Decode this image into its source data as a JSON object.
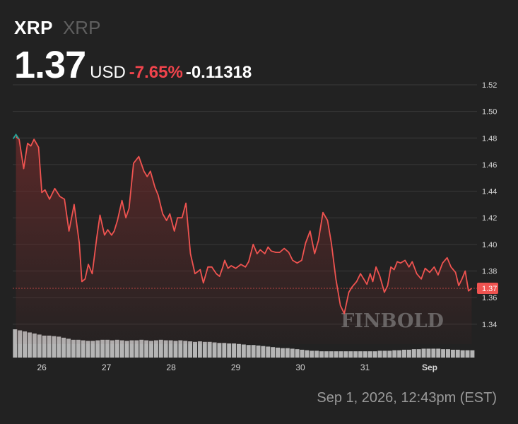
{
  "header": {
    "symbol": "XRP",
    "name": "XRP",
    "price": "1.37",
    "currency": "USD",
    "change_pct": "-7.65%",
    "change_abs": "-0.11318"
  },
  "timestamp": "Sep 1, 2026, 12:43pm (EST)",
  "watermark": "FINBOLD",
  "colors": {
    "background": "#222222",
    "line": "#ef5350",
    "area_top": "#6b2a2a",
    "start_marker": "#26a69a",
    "price_tag_bg": "#ef5350",
    "volume": "#b5b5b5",
    "grid": "#3a3a3a"
  },
  "chart_data": {
    "type": "line",
    "title": "",
    "xlabel": "",
    "ylabel": "",
    "ylim": [
      1.325,
      1.52
    ],
    "xlim": [
      25.55,
      32.7
    ],
    "y_ticks": [
      "1.52",
      "1.50",
      "1.48",
      "1.46",
      "1.44",
      "1.42",
      "1.40",
      "1.38",
      "1.36",
      "1.34"
    ],
    "x_ticks": [
      {
        "x": 26,
        "label": "26"
      },
      {
        "x": 27,
        "label": "27"
      },
      {
        "x": 28,
        "label": "28"
      },
      {
        "x": 29,
        "label": "29"
      },
      {
        "x": 30,
        "label": "30"
      },
      {
        "x": 31,
        "label": "31"
      },
      {
        "x": 32,
        "label": "Sep"
      }
    ],
    "current_price_label": "1.37",
    "current_price": 1.367,
    "series": [
      {
        "x": [
          25.6,
          25.65,
          25.72,
          25.78,
          25.83,
          25.88,
          25.95,
          26.0,
          26.05,
          26.12,
          26.2,
          26.28,
          26.35,
          26.42,
          26.5,
          26.58,
          26.62,
          26.67,
          26.72,
          26.78,
          26.85,
          26.9,
          26.97,
          27.02,
          27.08,
          27.12,
          27.17,
          27.24,
          27.3,
          27.35,
          27.42,
          27.5,
          27.58,
          27.63,
          27.68,
          27.75,
          27.8,
          27.87,
          27.93,
          27.98,
          28.05,
          28.1,
          28.17,
          28.23,
          28.3,
          28.37,
          28.45,
          28.5,
          28.57,
          28.63,
          28.7,
          28.75,
          28.8,
          28.83,
          28.88,
          28.93,
          29.0,
          29.08,
          29.15,
          29.2,
          29.27,
          29.33,
          29.38,
          29.45,
          29.5,
          29.55,
          29.62,
          29.68,
          29.75,
          29.82,
          29.88,
          29.95,
          30.02,
          30.08,
          30.15,
          30.22,
          30.28,
          30.35,
          30.42,
          30.48,
          30.55,
          30.62,
          30.68,
          30.75,
          30.8,
          30.87,
          30.93,
          30.98,
          31.03,
          31.08,
          31.12,
          31.17,
          31.23,
          31.3,
          31.35,
          31.4,
          31.45,
          31.5,
          31.55,
          31.62,
          31.68,
          31.73,
          31.8,
          31.87,
          31.93,
          32.0,
          32.07,
          32.13,
          32.2,
          32.27,
          32.33,
          32.4,
          32.45,
          32.5,
          32.55,
          32.6,
          32.65
        ],
        "y": [
          1.481,
          1.479,
          1.457,
          1.476,
          1.474,
          1.479,
          1.473,
          1.439,
          1.441,
          1.434,
          1.442,
          1.436,
          1.434,
          1.41,
          1.43,
          1.401,
          1.372,
          1.374,
          1.385,
          1.378,
          1.405,
          1.422,
          1.407,
          1.411,
          1.407,
          1.41,
          1.418,
          1.433,
          1.42,
          1.427,
          1.461,
          1.466,
          1.455,
          1.451,
          1.455,
          1.443,
          1.437,
          1.423,
          1.418,
          1.423,
          1.41,
          1.42,
          1.42,
          1.431,
          1.393,
          1.378,
          1.381,
          1.371,
          1.383,
          1.383,
          1.378,
          1.376,
          1.383,
          1.388,
          1.382,
          1.384,
          1.382,
          1.385,
          1.383,
          1.387,
          1.4,
          1.393,
          1.396,
          1.393,
          1.398,
          1.395,
          1.394,
          1.394,
          1.397,
          1.394,
          1.388,
          1.386,
          1.388,
          1.401,
          1.41,
          1.393,
          1.403,
          1.424,
          1.418,
          1.401,
          1.374,
          1.354,
          1.348,
          1.364,
          1.368,
          1.372,
          1.378,
          1.374,
          1.37,
          1.378,
          1.372,
          1.383,
          1.376,
          1.364,
          1.369,
          1.383,
          1.381,
          1.387,
          1.386,
          1.388,
          1.383,
          1.387,
          1.378,
          1.374,
          1.382,
          1.379,
          1.383,
          1.377,
          1.386,
          1.39,
          1.383,
          1.379,
          1.369,
          1.374,
          1.38,
          1.365,
          1.367
        ]
      }
    ],
    "volume": [
      54,
      52,
      50,
      48,
      46,
      44,
      42,
      42,
      41,
      40,
      38,
      36,
      34,
      34,
      33,
      32,
      32,
      33,
      34,
      34,
      33,
      34,
      33,
      32,
      33,
      33,
      34,
      33,
      32,
      33,
      34,
      33,
      33,
      32,
      33,
      32,
      31,
      30,
      31,
      30,
      30,
      29,
      28,
      28,
      27,
      27,
      26,
      25,
      24,
      24,
      23,
      22,
      21,
      20,
      19,
      18,
      18,
      17,
      16,
      15,
      14,
      13,
      13,
      12,
      12,
      12,
      12,
      12,
      12,
      12,
      12,
      12,
      12,
      12,
      12,
      13,
      13,
      13,
      14,
      14,
      15,
      15,
      16,
      16,
      17,
      17,
      17,
      17,
      16,
      16,
      15,
      15,
      14,
      14,
      14
    ]
  }
}
